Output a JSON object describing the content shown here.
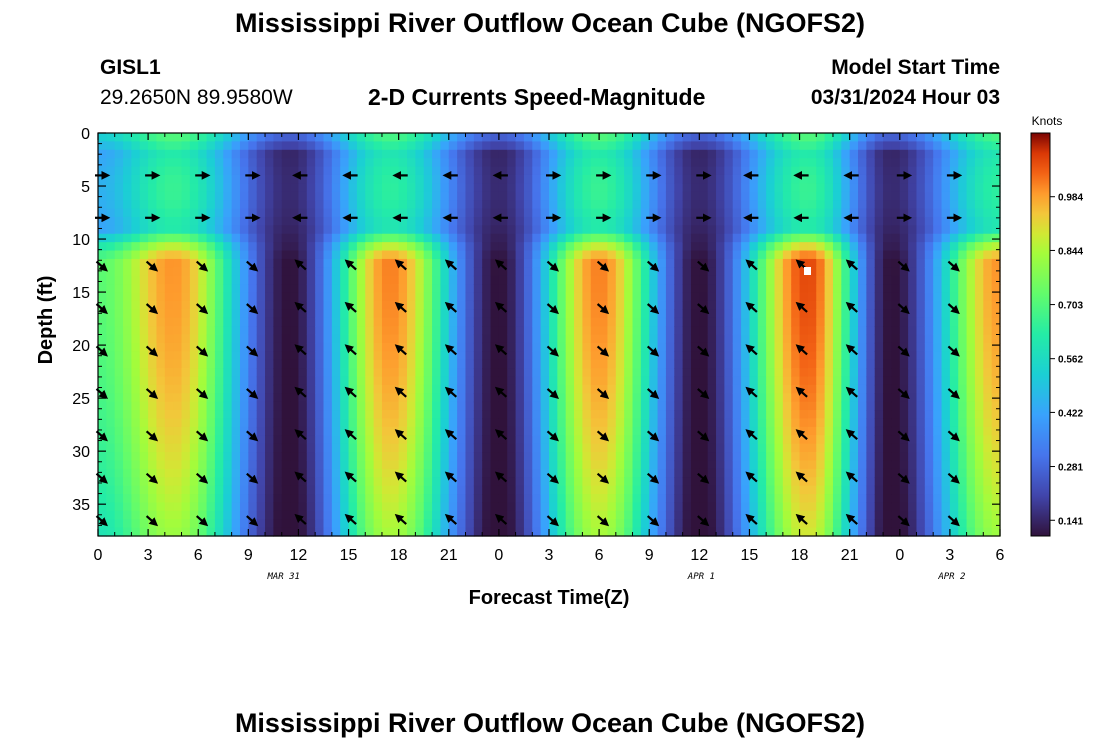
{
  "header": {
    "title": "Mississippi River Outflow Ocean Cube (NGOFS2)",
    "station": "GISL1",
    "coords": "29.2650N  89.9580W",
    "subtitle": "2-D Currents Speed-Magnitude",
    "model_start_label": "Model Start Time",
    "model_start_value": "03/31/2024 Hour 03"
  },
  "footer": {
    "title": "Mississippi River Outflow Ocean Cube (NGOFS2)"
  },
  "chart_data": {
    "type": "heatmap",
    "xlabel": "Forecast Time(Z)",
    "ylabel": "Depth (ft)",
    "x_tick_labels": [
      "0",
      "3",
      "6",
      "9",
      "12",
      "15",
      "18",
      "21",
      "0",
      "3",
      "6",
      "9",
      "12",
      "15",
      "18",
      "21",
      "0",
      "3",
      "6"
    ],
    "x_range_hours": [
      0,
      54
    ],
    "date_labels": [
      {
        "label": "MAR 31",
        "hour": 11
      },
      {
        "label": "APR 1",
        "hour": 36
      },
      {
        "label": "APR 2",
        "hour": 51
      }
    ],
    "y_ticks": [
      0,
      5,
      10,
      15,
      20,
      25,
      30,
      35
    ],
    "y_range_ft": [
      0,
      38
    ],
    "y_inverted": true,
    "colorbar": {
      "unit": "Knots",
      "tick_labels": [
        "0.984",
        "0.844",
        "0.703",
        "0.562",
        "0.422",
        "0.281",
        "0.141"
      ],
      "range": [
        0.1,
        1.15
      ]
    },
    "slack_hours": [
      11.5,
      24,
      36,
      47.5
    ],
    "peak_hours": [
      4.5,
      17.5,
      30,
      42.5,
      54
    ],
    "peak_speed_lower": [
      1.0,
      1.02,
      1.02,
      1.08,
      1.0
    ],
    "peak_speed_upper": [
      0.66,
      0.64,
      0.66,
      0.66,
      0.64
    ],
    "surface_speed_slack": [
      0.55,
      0.66,
      0.6,
      0.6
    ],
    "interface_depth_ft": 10.5,
    "flow_direction_lower": [
      "southeast",
      "northwest",
      "southeast",
      "northwest",
      "southeast"
    ],
    "flow_direction_upper": [
      "east",
      "west",
      "east",
      "west",
      "east"
    ],
    "arrow_hours": [
      0,
      3,
      6,
      9,
      12,
      15,
      18,
      21,
      24,
      27,
      30,
      33,
      36,
      39,
      42,
      45,
      48,
      51
    ],
    "arrow_depths_ft": [
      4,
      8,
      12.5,
      16.5,
      20.5,
      24.5,
      28.5,
      32.5,
      36.5
    ]
  }
}
